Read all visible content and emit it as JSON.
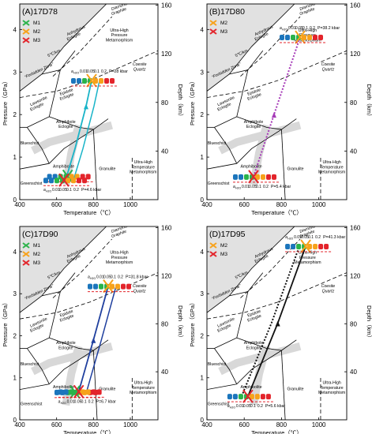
{
  "figure": {
    "axis": {
      "xlabel": "Temperature（℃）",
      "ylabel": "Pressure（GPa）",
      "depth_label": "Depth（km）",
      "x_ticks": [
        400,
        600,
        800,
        1000
      ],
      "y_ticks": [
        0,
        1,
        2,
        3,
        4
      ],
      "depth_ticks": [
        40,
        80,
        120,
        160
      ],
      "xlim": [
        400,
        1150
      ],
      "ylim": [
        0,
        4.6
      ]
    },
    "field_labels": {
      "forbidden_zone": "“Forbidden Zone”",
      "five_c_per_km": "5℃/km",
      "anhydrous_eclogite": "Anhydrous Eclogite",
      "diamond_graphite": "Diamond Graphite",
      "uhp_metamorphism": "Ultra-High Pressure Metamorphism",
      "lawsonite_eclogite": "Lawsonite Eclogite",
      "epidote_eclogite": "Epidote Eclogite",
      "coesite_quartz": "Coesite Quartz",
      "amphibole_eclogite": "Amphibole Eclogite",
      "blueschist": "Blueschist",
      "amphibolite": "Amphibolite",
      "granulite": "Granulite",
      "greenschist": "Greenschist",
      "uht_metamorphism": "Ultra-High Temperature Metamorphism"
    },
    "legend_colors": {
      "M1": "#2bb34a",
      "M2": "#f7a21b",
      "M3": "#e3242b"
    },
    "a_h2o": "a",
    "a_h2o_sub": "H2O",
    "activity_values": [
      "0.01",
      "0.05",
      "0.1",
      "0.2"
    ],
    "activity_colors": [
      "#1b75bc",
      "#2bb34a",
      "#f7a21b",
      "#e3242b"
    ]
  },
  "chart_data": [
    {
      "type": "scatter",
      "title": "(A)17D78",
      "legend": [
        "M1",
        "M2",
        "M3"
      ],
      "path_color": "#19b4c8",
      "path_style": "solid",
      "annotations": [
        "P=28 kbar",
        "P=4.6 kbar"
      ],
      "points": [
        {
          "phase": "M1",
          "T": 660,
          "P": 0.55
        },
        {
          "phase": "M2",
          "T": 790,
          "P": 2.8
        },
        {
          "phase": "M3",
          "T": 640,
          "P": 0.46
        }
      ],
      "path": [
        [
          650,
          0.48
        ],
        [
          700,
          1.2
        ],
        [
          760,
          2.2
        ],
        [
          790,
          2.8
        ]
      ]
    },
    {
      "type": "scatter",
      "title": "(B)17D80",
      "legend": [
        "M2",
        "M3"
      ],
      "path_color": "#a63ab8",
      "path_style": "dotted",
      "annotations": [
        "P=38.2 kbar",
        "P=5.4 kbar"
      ],
      "points": [
        {
          "phase": "M2",
          "T": 900,
          "P": 3.82
        },
        {
          "phase": "M3",
          "T": 650,
          "P": 0.54
        }
      ],
      "path": [
        [
          650,
          0.54
        ],
        [
          760,
          2.0
        ],
        [
          900,
          3.82
        ]
      ]
    },
    {
      "type": "scatter",
      "title": "(C)17D90",
      "legend": [
        "M1",
        "M2",
        "M3"
      ],
      "path_color": "#1f3f9e",
      "path_style": "solid",
      "annotations": [
        "P=31.8 kbar",
        "P=6.7 kbar"
      ],
      "points": [
        {
          "phase": "M1",
          "T": 700,
          "P": 0.66
        },
        {
          "phase": "M2",
          "T": 880,
          "P": 3.18
        },
        {
          "phase": "M3",
          "T": 720,
          "P": 0.67
        }
      ],
      "path": [
        [
          720,
          0.67
        ],
        [
          800,
          1.9
        ],
        [
          880,
          3.18
        ]
      ]
    },
    {
      "type": "scatter",
      "title": "(D)17D95",
      "legend": [
        "M2",
        "M3"
      ],
      "path_color": "#111111",
      "path_style": "dotted+solid",
      "annotations": [
        "P=41.3 kbar",
        "P=5.6 kbar"
      ],
      "points": [
        {
          "phase": "M2",
          "T": 930,
          "P": 4.13
        },
        {
          "phase": "M3",
          "T": 620,
          "P": 0.56
        }
      ],
      "path": [
        [
          620,
          0.56
        ],
        [
          780,
          2.3
        ],
        [
          930,
          4.13
        ]
      ]
    }
  ]
}
